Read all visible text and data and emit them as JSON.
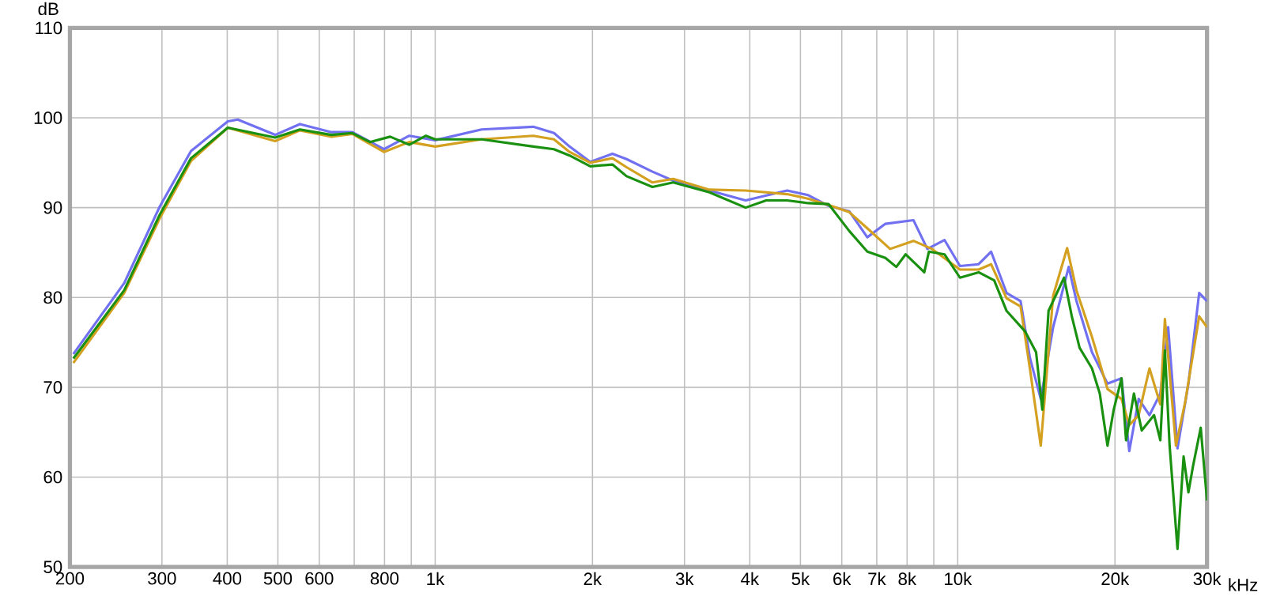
{
  "chart_data": {
    "type": "line",
    "ylabel": "dB",
    "log": "x",
    "grid": true,
    "xlim": [
      200,
      30000
    ],
    "ylim": [
      50,
      110
    ],
    "xticks": [
      200,
      300,
      400,
      500,
      600,
      {
        "value": 700,
        "label": null
      },
      800,
      {
        "value": 900,
        "label": null
      },
      {
        "value": 1000,
        "label": "1k"
      },
      {
        "value": 2000,
        "label": "2k"
      },
      {
        "value": 3000,
        "label": "3k"
      },
      {
        "value": 4000,
        "label": "4k"
      },
      {
        "value": 5000,
        "label": "5k"
      },
      {
        "value": 6000,
        "label": "6k"
      },
      {
        "value": 7000,
        "label": "7k"
      },
      {
        "value": 8000,
        "label": "8k"
      },
      {
        "value": 9000,
        "label": null
      },
      {
        "value": 10000,
        "label": "10k"
      },
      {
        "value": 20000,
        "label": "20k"
      },
      {
        "value": 30000,
        "label": "30k"
      }
    ],
    "xlabel": "kHz",
    "yticks": [
      50,
      60,
      70,
      80,
      90,
      100,
      110
    ],
    "series": [
      {
        "color": "#7070f0",
        "x": [
          203,
          254,
          297,
          341,
          401,
          419,
          494,
          551,
          633,
          694,
          798,
          892,
          1000,
          1227,
          1541,
          1688,
          1808,
          1981,
          2184,
          2324,
          2605,
          2854,
          3348,
          3928,
          4716,
          5166,
          5658,
          6200,
          6714,
          7272,
          8228,
          8748,
          9434,
          10100,
          10966,
          11584,
          12404,
          13192,
          13744,
          14420,
          15230,
          16310,
          16878,
          18072,
          19352,
          20580,
          21300,
          22200,
          23280,
          24420,
          25280,
          26340,
          27640,
          28980,
          30000
        ],
        "values": [
          73.7,
          81.6,
          90.1,
          96.3,
          99.6,
          99.8,
          98.1,
          99.3,
          98.4,
          98.4,
          96.5,
          98.0,
          97.5,
          98.7,
          99.0,
          98.3,
          96.8,
          95.1,
          96.0,
          95.4,
          94.0,
          93.0,
          91.9,
          90.8,
          91.9,
          91.4,
          90.2,
          89.6,
          86.7,
          88.2,
          88.6,
          85.4,
          86.4,
          83.5,
          83.7,
          85.1,
          80.5,
          79.6,
          73.3,
          68.7,
          76.7,
          83.4,
          79.6,
          73.9,
          70.4,
          71.0,
          62.9,
          68.7,
          66.9,
          69.3,
          76.7,
          63.2,
          70.4,
          80.5,
          79.6
        ]
      },
      {
        "color": "#d4a020",
        "x": [
          203,
          254,
          297,
          341,
          401,
          494,
          551,
          633,
          694,
          798,
          892,
          1000,
          1227,
          1541,
          1688,
          1808,
          1981,
          2184,
          2324,
          2605,
          2854,
          3348,
          3928,
          4716,
          5166,
          5658,
          6200,
          6714,
          7425,
          8228,
          8930,
          10100,
          10966,
          11584,
          12404,
          13192,
          13744,
          14420,
          15230,
          16198,
          16878,
          18072,
          19352,
          20580,
          21300,
          22200,
          23280,
          24420,
          24920,
          26160,
          27260,
          28980,
          30000
        ],
        "values": [
          72.7,
          80.5,
          88.8,
          95.2,
          98.9,
          97.4,
          98.6,
          97.9,
          98.2,
          96.2,
          97.3,
          96.8,
          97.6,
          98.0,
          97.6,
          96.2,
          95.0,
          95.5,
          94.5,
          92.8,
          93.2,
          92.0,
          91.9,
          91.5,
          91.0,
          90.3,
          89.5,
          87.7,
          85.4,
          86.3,
          85.4,
          83.1,
          83.1,
          83.7,
          79.9,
          79.0,
          72.1,
          63.5,
          80.2,
          85.5,
          80.8,
          75.6,
          69.8,
          68.7,
          65.8,
          66.9,
          72.1,
          68.1,
          77.6,
          63.5,
          68.4,
          77.9,
          76.7
        ]
      },
      {
        "color": "#1a9010",
        "x": [
          203,
          254,
          297,
          341,
          401,
          494,
          551,
          633,
          694,
          750,
          820,
          892,
          960,
          1000,
          1227,
          1541,
          1688,
          1808,
          1981,
          2184,
          2324,
          2605,
          2854,
          3348,
          3928,
          4300,
          4716,
          5166,
          5658,
          6200,
          6714,
          7272,
          7630,
          7950,
          8630,
          8808,
          9434,
          10100,
          10966,
          11744,
          12404,
          13466,
          14126,
          14520,
          14922,
          15980,
          16534,
          17110,
          18072,
          18704,
          19352,
          19890,
          20580,
          21000,
          21740,
          22500,
          23760,
          24420,
          24920,
          25440,
          26340,
          27060,
          27640,
          28200,
          29180,
          30000
        ],
        "values": [
          73.2,
          80.8,
          89.2,
          95.5,
          98.9,
          97.8,
          98.7,
          98.1,
          98.3,
          97.3,
          97.9,
          97.0,
          98.0,
          97.6,
          97.6,
          96.8,
          96.5,
          95.8,
          94.6,
          94.8,
          93.5,
          92.3,
          92.8,
          91.7,
          90.0,
          90.8,
          90.8,
          90.5,
          90.4,
          87.4,
          85.1,
          84.4,
          83.4,
          84.8,
          82.8,
          85.1,
          84.8,
          82.2,
          82.8,
          81.9,
          78.5,
          76.2,
          73.9,
          67.5,
          78.5,
          82.2,
          77.9,
          74.4,
          72.1,
          69.3,
          63.5,
          67.5,
          71.0,
          64.1,
          69.3,
          65.2,
          66.9,
          64.1,
          74.1,
          63.5,
          52.0,
          62.3,
          58.3,
          61.2,
          65.5,
          57.4
        ]
      }
    ]
  }
}
